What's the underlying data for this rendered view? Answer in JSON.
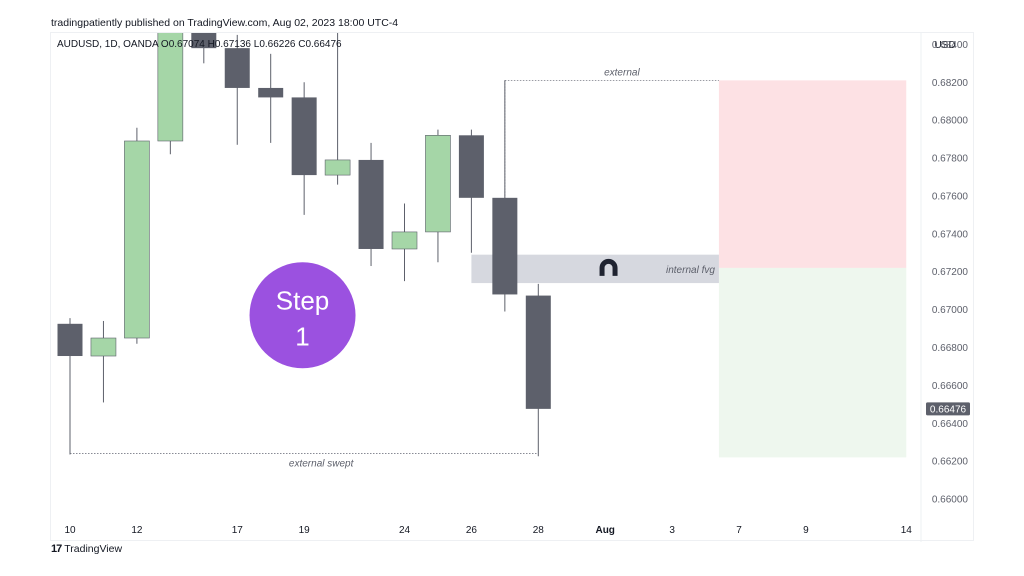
{
  "publish_line": "tradingpatiently published on TradingView.com, Aug 02, 2023 18:00 UTC-4",
  "footer_logo_text": "TradingView",
  "footer_logo_mark": "17",
  "chart_data": {
    "type": "candlestick",
    "symbol_line": "AUDUSD, 1D, OANDA  O0.67074  H0.67136  L0.66226  C0.66476",
    "currency_label": "USD",
    "last_price_label": "0.66476",
    "last_price": 0.66476,
    "y_range": [
      0.659,
      0.6846
    ],
    "y_ticks": [
      0.684,
      0.682,
      0.68,
      0.678,
      0.676,
      0.674,
      0.672,
      0.67,
      0.668,
      0.666,
      0.664,
      0.662,
      0.66
    ],
    "y_tick_labels": [
      "0.68400",
      "0.68200",
      "0.68000",
      "0.67800",
      "0.67600",
      "0.67400",
      "0.67200",
      "0.67000",
      "0.66800",
      "0.66600",
      "0.66400",
      "0.66200",
      "0.66000"
    ],
    "x_tick_labels": [
      {
        "label": "10",
        "slot": 0
      },
      {
        "label": "12",
        "slot": 2
      },
      {
        "label": "17",
        "slot": 5
      },
      {
        "label": "19",
        "slot": 7
      },
      {
        "label": "24",
        "slot": 10
      },
      {
        "label": "26",
        "slot": 12
      },
      {
        "label": "28",
        "slot": 14
      },
      {
        "label": "Aug",
        "slot": 16,
        "bold": true
      },
      {
        "label": "3",
        "slot": 18
      },
      {
        "label": "7",
        "slot": 20
      },
      {
        "label": "9",
        "slot": 22
      },
      {
        "label": "14",
        "slot": 25
      }
    ],
    "candles": [
      {
        "slot": 0,
        "o": 0.66925,
        "h": 0.66955,
        "l": 0.66235,
        "c": 0.66755
      },
      {
        "slot": 1,
        "o": 0.66755,
        "h": 0.6694,
        "l": 0.6651,
        "c": 0.6685
      },
      {
        "slot": 2,
        "o": 0.6685,
        "h": 0.6796,
        "l": 0.6682,
        "c": 0.6789
      },
      {
        "slot": 3,
        "o": 0.6789,
        "h": 0.6855,
        "l": 0.6782,
        "c": 0.6852
      },
      {
        "slot": 4,
        "o": 0.6852,
        "h": 0.6856,
        "l": 0.683,
        "c": 0.6838
      },
      {
        "slot": 5,
        "o": 0.6838,
        "h": 0.6845,
        "l": 0.6787,
        "c": 0.6817
      },
      {
        "slot": 6,
        "o": 0.6817,
        "h": 0.6835,
        "l": 0.6788,
        "c": 0.6812
      },
      {
        "slot": 7,
        "o": 0.6812,
        "h": 0.682,
        "l": 0.675,
        "c": 0.6771
      },
      {
        "slot": 8,
        "o": 0.6771,
        "h": 0.6849,
        "l": 0.6766,
        "c": 0.6779
      },
      {
        "slot": 9,
        "o": 0.6779,
        "h": 0.6788,
        "l": 0.6723,
        "c": 0.6732
      },
      {
        "slot": 10,
        "o": 0.6732,
        "h": 0.6756,
        "l": 0.6715,
        "c": 0.6741
      },
      {
        "slot": 11,
        "o": 0.6741,
        "h": 0.6795,
        "l": 0.6725,
        "c": 0.6792
      },
      {
        "slot": 12,
        "o": 0.6792,
        "h": 0.6795,
        "l": 0.673,
        "c": 0.6759
      },
      {
        "slot": 13,
        "o": 0.6759,
        "h": 0.6821,
        "l": 0.6699,
        "c": 0.6708
      },
      {
        "slot": 14,
        "o": 0.67074,
        "h": 0.67136,
        "l": 0.66226,
        "c": 0.66476
      }
    ],
    "bull_color": "#a5d6a7",
    "bear_color": "#5d606b",
    "annotations": {
      "external_label": "external",
      "external_level": 0.6821,
      "external_swept_label": "external swept",
      "swept_level": 0.6624,
      "internal_fvg_label": "internal fvg",
      "fvg_top": 0.6729,
      "fvg_bottom": 0.6714,
      "fvg_color": "#d1d4dc",
      "magnet_icon": "magnet-icon",
      "sell_zone_color": "#fde1e4",
      "buy_zone_color": "#eef7ee",
      "zone_top": 0.6821,
      "zone_mid": 0.6722,
      "zone_bottom": 0.6622,
      "step_badge": {
        "line1": "Step",
        "line2": "1",
        "color": "#9b51e0"
      }
    }
  }
}
